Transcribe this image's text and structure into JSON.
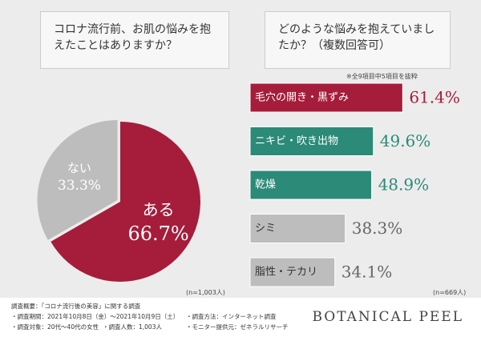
{
  "chart_data": [
    {
      "type": "pie",
      "title": "コロナ流行前、お肌の悩みを抱えたことはありますか？",
      "categories": [
        "ある",
        "ない"
      ],
      "values": [
        66.7,
        33.3
      ],
      "value_labels": [
        "66.7%",
        "33.3%"
      ],
      "colors": [
        "#a51d3b",
        "#bdbdbd"
      ],
      "text_colors": [
        "#ffffff",
        "#ffffff"
      ],
      "note": "(n=1,003人)"
    },
    {
      "type": "hbar",
      "title": "どのような悩みを抱えていましたか？（複数回答可）",
      "subtitle": "※全9項目中5項目を抜粋",
      "categories": [
        "毛穴の開き・黒ずみ",
        "ニキビ・吹き出物",
        "乾燥",
        "シミ",
        "脂性・テカリ"
      ],
      "values": [
        61.4,
        49.6,
        48.9,
        38.3,
        34.1
      ],
      "value_labels": [
        "61.4%",
        "49.6%",
        "48.9%",
        "38.3%",
        "34.1%"
      ],
      "colors": [
        "#a51d3b",
        "#2b8a78",
        "#2b8a78",
        "#bdbdbd",
        "#bdbdbd"
      ],
      "text_colors": [
        "#ffffff",
        "#ffffff",
        "#ffffff",
        "#333333",
        "#333333"
      ],
      "value_colors": [
        "#a51d3b",
        "#2b8a78",
        "#2b8a78",
        "#666666",
        "#666666"
      ],
      "note": "(n=669人)"
    }
  ],
  "footer": {
    "heading": "調査概要：「コロナ流行後の美容」に関する調査",
    "items": [
      "・調査期間：2021年10月8日（金）～2021年10月9日（土）",
      "・調査方法：インターネット調査",
      "・調査対象：20代～40代の女性",
      "・調査人数：1,003人",
      "・モニター提供元：ゼネラルリサーチ"
    ],
    "brand": "BOTANICAL PEEL"
  }
}
